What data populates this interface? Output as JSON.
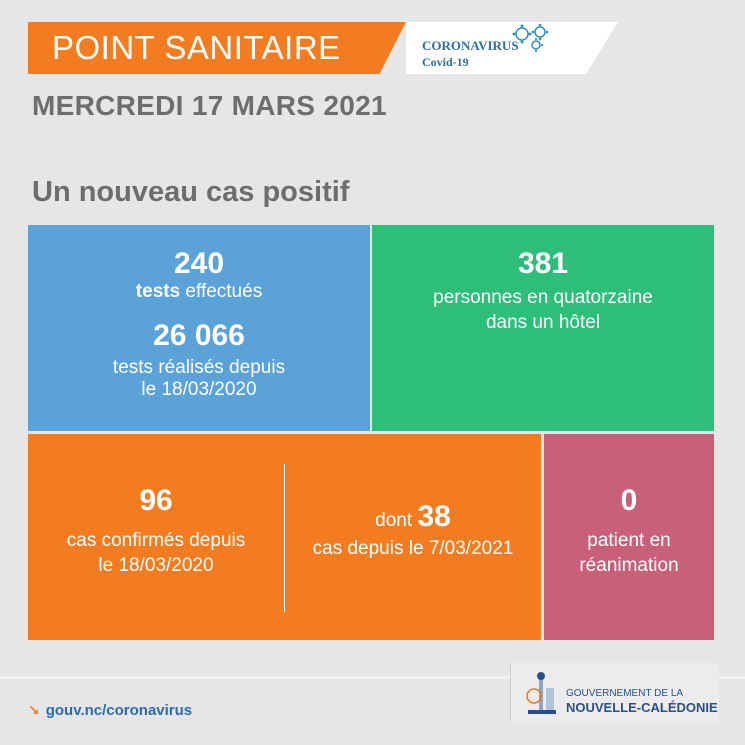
{
  "header": {
    "title": "POINT SANITAIRE",
    "badge_line1": "CORONAVIRUS",
    "badge_line2": "Covid-19",
    "badge_icon": "virus-icon"
  },
  "date": "MERCREDI 17 MARS 2021",
  "headline": "Un nouveau cas positif",
  "tiles": {
    "tests": {
      "value": "240",
      "label_bold": "tests",
      "label_rest": " effectués",
      "total_value": "26 066",
      "total_label_line1": "tests réalisés depuis",
      "total_label_line2": "le 18/03/2020"
    },
    "hotel": {
      "value": "381",
      "label_line1": "personnes en quatorzaine",
      "label_line2": "dans un hôtel"
    },
    "cases": {
      "value": "96",
      "label_line1": "cas confirmés depuis",
      "label_line2": "le 18/03/2020",
      "recent_prefix": "dont ",
      "recent_value": "38",
      "recent_label": "cas depuis le 7/03/2021"
    },
    "reanimation": {
      "value": "0",
      "label_line1": "patient en",
      "label_line2": "réanimation"
    }
  },
  "footer": {
    "link": "gouv.nc/coronavirus",
    "gov_line1": "GOUVERNEMENT DE LA",
    "gov_line2": "NOUVELLE-CALÉDONIE"
  },
  "colors": {
    "orange": "#f47c20",
    "blue": "#5aa2d8",
    "green": "#2dbf7a",
    "pink": "#c8607a",
    "background": "#e6e6e6"
  }
}
